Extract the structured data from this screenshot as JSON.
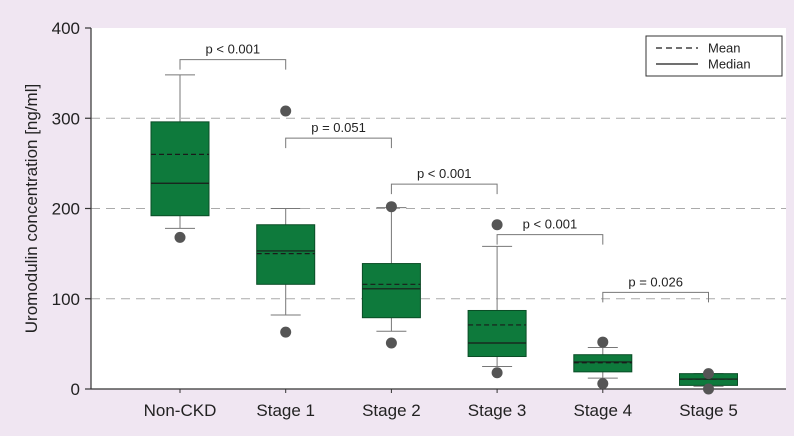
{
  "colors": {
    "background": "#f0e6f2",
    "plot_background": "#ffffff",
    "box_fill": "#0e7a3c",
    "box_stroke": "#0a4d26",
    "outlier": "#555555",
    "whisker": "#777777",
    "grid": "#aaaaaa",
    "bracket": "#777777"
  },
  "chart_data": {
    "type": "box",
    "title": "",
    "xlabel": "",
    "ylabel": "Uromodulin concentration [ng/ml]",
    "ylim": [
      0,
      400
    ],
    "yticks": [
      0,
      100,
      200,
      300,
      400
    ],
    "grid": "horizontal dashed at 100, 200, 300",
    "legend": {
      "placement": "top-right",
      "entries": [
        {
          "label": "Mean",
          "style": "dashed"
        },
        {
          "label": "Median",
          "style": "solid"
        }
      ]
    },
    "categories": [
      "Non-CKD",
      "Stage 1",
      "Stage 2",
      "Stage 3",
      "Stage 4",
      "Stage 5"
    ],
    "boxes": [
      {
        "category": "Non-CKD",
        "whisker_low": 178,
        "q1": 192,
        "median": 228,
        "mean": 260,
        "q3": 296,
        "whisker_high": 348,
        "outliers": [
          168
        ]
      },
      {
        "category": "Stage 1",
        "whisker_low": 82,
        "q1": 116,
        "median": 153,
        "mean": 150,
        "q3": 182,
        "whisker_high": 200,
        "outliers": [
          63,
          308
        ]
      },
      {
        "category": "Stage 2",
        "whisker_low": 64,
        "q1": 79,
        "median": 111,
        "mean": 116,
        "q3": 139,
        "whisker_high": 201,
        "outliers": [
          51,
          202
        ]
      },
      {
        "category": "Stage 3",
        "whisker_low": 25,
        "q1": 36,
        "median": 51,
        "mean": 71,
        "q3": 87,
        "whisker_high": 158,
        "outliers": [
          18,
          182
        ]
      },
      {
        "category": "Stage 4",
        "whisker_low": 12,
        "q1": 19,
        "median": 30,
        "mean": 29,
        "q3": 38,
        "whisker_high": 46,
        "outliers": [
          6,
          52
        ]
      },
      {
        "category": "Stage 5",
        "whisker_low": 3,
        "q1": 4,
        "median": 11,
        "mean": 11,
        "q3": 17,
        "whisker_high": 17,
        "outliers": [
          0,
          17
        ]
      }
    ],
    "annotations": [
      {
        "from": "Non-CKD",
        "to": "Stage 1",
        "label": "p < 0.001",
        "y": 365
      },
      {
        "from": "Stage 1",
        "to": "Stage 2",
        "label": "p = 0.051",
        "y": 278
      },
      {
        "from": "Stage 2",
        "to": "Stage 3",
        "label": "p < 0.001",
        "y": 227
      },
      {
        "from": "Stage 3",
        "to": "Stage 4",
        "label": "p < 0.001",
        "y": 171
      },
      {
        "from": "Stage 4",
        "to": "Stage 5",
        "label": "p = 0.026",
        "y": 107
      }
    ]
  }
}
